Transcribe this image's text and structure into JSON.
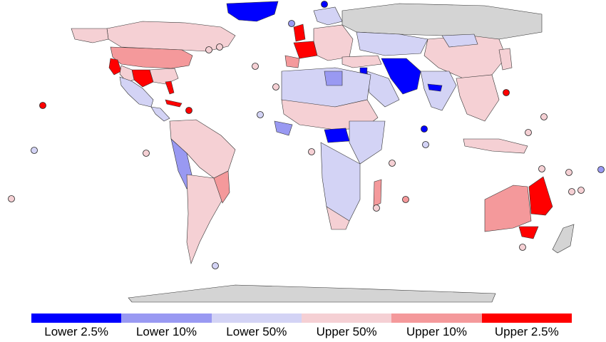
{
  "colors": {
    "lower_2_5": "#0000ff",
    "lower_10": "#9999f2",
    "lower_50": "#d3d3f5",
    "upper_50": "#f5d0d4",
    "upper_10": "#f4999b",
    "upper_2_5": "#ff0000",
    "no_data": "#d4d4d4"
  },
  "legend": [
    {
      "label": "Lower 2.5%",
      "color": "#0000ff"
    },
    {
      "label": "Lower 10%",
      "color": "#9999f2"
    },
    {
      "label": "Lower 50%",
      "color": "#d3d3f5"
    },
    {
      "label": "Upper 50%",
      "color": "#f5d0d4"
    },
    {
      "label": "Upper 10%",
      "color": "#f4999b"
    },
    {
      "label": "Upper 2.5%",
      "color": "#ff0000"
    }
  ]
}
